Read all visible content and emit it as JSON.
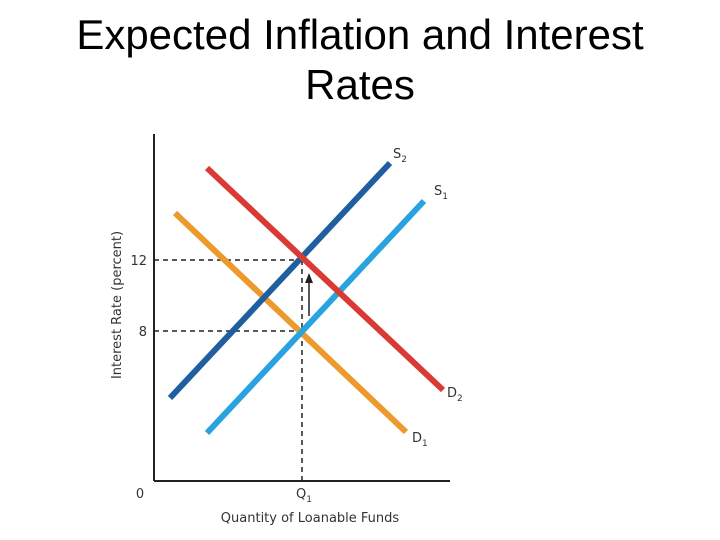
{
  "slide": {
    "title_line1": "Expected Inflation and Interest",
    "title_line2": "Rates"
  },
  "diagram": {
    "y_axis_label": "Interest Rate (percent)",
    "x_axis_label": "Quantity of Loanable Funds",
    "origin_label": "0",
    "y_ticks": [
      "12",
      "8"
    ],
    "x_tick": "Q",
    "x_tick_sub": "1",
    "curves": {
      "S2": {
        "letter": "S",
        "sub": "2",
        "color": "#1f5fa0"
      },
      "S1": {
        "letter": "S",
        "sub": "1",
        "color": "#29a3e0"
      },
      "D2": {
        "letter": "D",
        "sub": "2",
        "color": "#d93a36"
      },
      "D1": {
        "letter": "D",
        "sub": "1",
        "color": "#ec9a2c"
      }
    }
  }
}
